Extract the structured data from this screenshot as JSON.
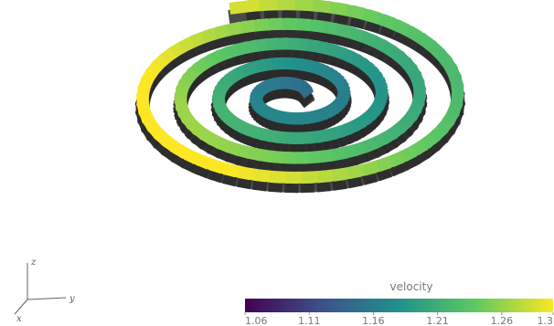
{
  "colorbar": {
    "title": "velocity",
    "clim": [
      1.06,
      1.3
    ],
    "ticks": [
      1.06,
      1.11,
      1.16,
      1.21,
      1.26,
      1.3
    ],
    "colormap": [
      "#440154",
      "#3b528b",
      "#21918c",
      "#5ec962",
      "#fde725"
    ]
  },
  "axes_widget": {
    "x": "x",
    "y": "y",
    "z": "z"
  }
}
